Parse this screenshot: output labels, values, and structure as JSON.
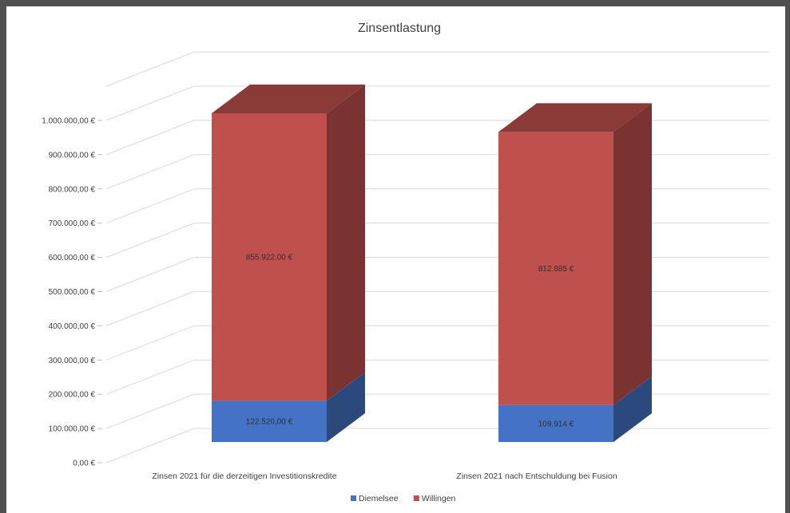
{
  "chart_data": {
    "type": "bar",
    "stacked": true,
    "three_d": true,
    "title": "Zinsentlastung",
    "categories": [
      "Zinsen 2021 für die derzeitigen Investitionskredite",
      "Zinsen 2021 nach Entschuldung bei Fusion"
    ],
    "series": [
      {
        "name": "Diemelsee",
        "color": "#4472C4",
        "values": [
          122520,
          109914
        ],
        "labels": [
          "122.520,00 €",
          "109.914 €"
        ]
      },
      {
        "name": "Willingen",
        "color": "#C0504D",
        "values": [
          855922,
          812885
        ],
        "labels": [
          "855.922,00 €",
          "812.885 €"
        ]
      }
    ],
    "ylim": [
      0,
      1000000
    ],
    "yticks": [
      0,
      100000,
      200000,
      300000,
      400000,
      500000,
      600000,
      700000,
      800000,
      900000,
      1000000
    ],
    "ytick_labels": [
      "0,00 €",
      "100.000,00 €",
      "200.000,00 €",
      "300.000,00 €",
      "400.000,00 €",
      "500.000,00 €",
      "600.000,00 €",
      "700.000,00 €",
      "800.000,00 €",
      "900.000,00 €",
      "1.000.000,00 €"
    ],
    "grid": true,
    "legend_position": "bottom"
  }
}
